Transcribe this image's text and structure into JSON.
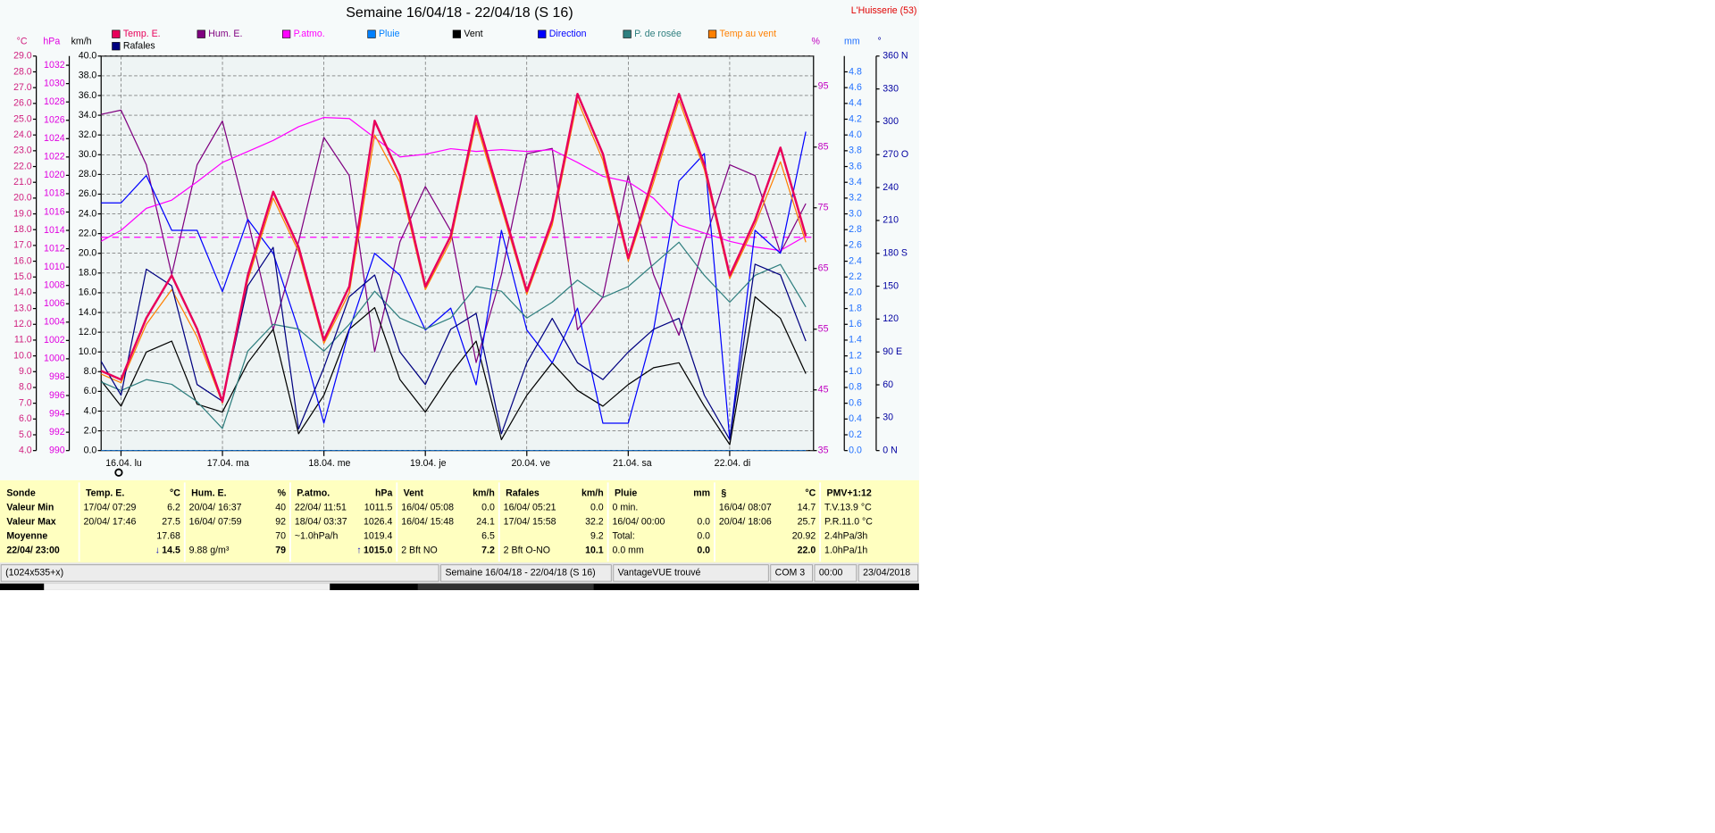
{
  "header": {
    "station": "L'Huisserie (53)"
  },
  "chart_data": {
    "type": "line",
    "title": "Semaine 16/04/18 - 22/04/18 (S 16)",
    "categories": [
      null,
      "16.04.  lu",
      null,
      null,
      null,
      "17.04.  ma",
      null,
      null,
      null,
      "18.04.  me",
      null,
      null,
      null,
      "19.04.  je",
      null,
      null,
      null,
      "20.04.  ve",
      null,
      null,
      null,
      "21.04.  sa",
      null,
      null,
      null,
      "22.04.  di",
      null,
      null,
      null
    ],
    "grid": true,
    "grid_axis": "kmh",
    "axes": [
      {
        "id": "temp",
        "label": "°C",
        "side": "left",
        "color": "#d0207f",
        "lim": [
          4,
          29
        ],
        "ticks": [
          {
            "value": 4,
            "label": "4.0"
          },
          {
            "value": 5,
            "label": "5.0"
          },
          {
            "value": 6,
            "label": "6.0"
          },
          {
            "value": 7,
            "label": "7.0"
          },
          {
            "value": 8,
            "label": "8.0"
          },
          {
            "value": 9,
            "label": "9.0"
          },
          {
            "value": 10,
            "label": "10.0"
          },
          {
            "value": 11,
            "label": "11.0"
          },
          {
            "value": 12,
            "label": "12.0"
          },
          {
            "value": 13,
            "label": "13.0"
          },
          {
            "value": 14,
            "label": "14.0"
          },
          {
            "value": 15,
            "label": "15.0"
          },
          {
            "value": 16,
            "label": "16.0"
          },
          {
            "value": 17,
            "label": "17.0"
          },
          {
            "value": 18,
            "label": "18.0"
          },
          {
            "value": 19,
            "label": "19.0"
          },
          {
            "value": 20,
            "label": "20.0"
          },
          {
            "value": 21,
            "label": "21.0"
          },
          {
            "value": 22,
            "label": "22.0"
          },
          {
            "value": 23,
            "label": "23.0"
          },
          {
            "value": 24,
            "label": "24.0"
          },
          {
            "value": 25,
            "label": "25.0"
          },
          {
            "value": 26,
            "label": "26.0"
          },
          {
            "value": 27,
            "label": "27.0"
          },
          {
            "value": 28,
            "label": "28.0"
          },
          {
            "value": 29,
            "label": "29.0"
          }
        ]
      },
      {
        "id": "hpa",
        "label": "hPa",
        "side": "left",
        "color": "#e000e0",
        "lim": [
          990,
          1033
        ],
        "ticks": [
          990,
          992,
          994,
          996,
          998,
          1000,
          1002,
          1004,
          1006,
          1008,
          1010,
          1012,
          1014,
          1016,
          1018,
          1020,
          1022,
          1024,
          1026,
          1028,
          1030,
          1032
        ]
      },
      {
        "id": "kmh",
        "label": "km/h",
        "side": "left",
        "color": "#000000",
        "lim": [
          0,
          40
        ],
        "ticks": [
          {
            "value": 0,
            "label": "0.0"
          },
          {
            "value": 2,
            "label": "2.0"
          },
          {
            "value": 4,
            "label": "4.0"
          },
          {
            "value": 6,
            "label": "6.0"
          },
          {
            "value": 8,
            "label": "8.0"
          },
          {
            "value": 10,
            "label": "10.0"
          },
          {
            "value": 12,
            "label": "12.0"
          },
          {
            "value": 14,
            "label": "14.0"
          },
          {
            "value": 16,
            "label": "16.0"
          },
          {
            "value": 18,
            "label": "18.0"
          },
          {
            "value": 20,
            "label": "20.0"
          },
          {
            "value": 22,
            "label": "22.0"
          },
          {
            "value": 24,
            "label": "24.0"
          },
          {
            "value": 26,
            "label": "26.0"
          },
          {
            "value": 28,
            "label": "28.0"
          },
          {
            "value": 30,
            "label": "30.0"
          },
          {
            "value": 32,
            "label": "32.0"
          },
          {
            "value": 34,
            "label": "34.0"
          },
          {
            "value": 36,
            "label": "36.0"
          },
          {
            "value": 38,
            "label": "38.0"
          },
          {
            "value": 40,
            "label": "40.0"
          }
        ]
      },
      {
        "id": "hum",
        "label": "%",
        "side": "right",
        "color": "#c000c0",
        "lim": [
          35,
          100
        ],
        "ticks": [
          35,
          45,
          55,
          65,
          75,
          85,
          95
        ]
      },
      {
        "id": "mm",
        "label": "mm",
        "side": "right",
        "color": "#2070ff",
        "lim": [
          0,
          5
        ],
        "ticks": [
          {
            "value": 0,
            "label": "0.0"
          },
          {
            "value": 0.2,
            "label": "0.2"
          },
          {
            "value": 0.4,
            "label": "0.4"
          },
          {
            "value": 0.6,
            "label": "0.6"
          },
          {
            "value": 0.8,
            "label": "0.8"
          },
          {
            "value": 1,
            "label": "1.0"
          },
          {
            "value": 1.2,
            "label": "1.2"
          },
          {
            "value": 1.4,
            "label": "1.4"
          },
          {
            "value": 1.6,
            "label": "1.6"
          },
          {
            "value": 1.8,
            "label": "1.8"
          },
          {
            "value": 2,
            "label": "2.0"
          },
          {
            "value": 2.2,
            "label": "2.2"
          },
          {
            "value": 2.4,
            "label": "2.4"
          },
          {
            "value": 2.6,
            "label": "2.6"
          },
          {
            "value": 2.8,
            "label": "2.8"
          },
          {
            "value": 3,
            "label": "3.0"
          },
          {
            "value": 3.2,
            "label": "3.2"
          },
          {
            "value": 3.4,
            "label": "3.4"
          },
          {
            "value": 3.6,
            "label": "3.6"
          },
          {
            "value": 3.8,
            "label": "3.8"
          },
          {
            "value": 4,
            "label": "4.0"
          },
          {
            "value": 4.2,
            "label": "4.2"
          },
          {
            "value": 4.4,
            "label": "4.4"
          },
          {
            "value": 4.6,
            "label": "4.6"
          },
          {
            "value": 4.8,
            "label": "4.8"
          }
        ]
      },
      {
        "id": "dir",
        "label": "°",
        "side": "right",
        "color": "#0000a0",
        "lim": [
          0,
          360
        ],
        "ticks": [
          {
            "value": 0,
            "label": "0   N"
          },
          30,
          60,
          {
            "value": 90,
            "label": "90  E"
          },
          120,
          150,
          {
            "value": 180,
            "label": "180 S"
          },
          210,
          240,
          {
            "value": 270,
            "label": "270 O"
          },
          300,
          330,
          {
            "value": 360,
            "label": "360 N"
          }
        ]
      }
    ],
    "reference_line": {
      "axis": "hpa",
      "value": 1013.25,
      "color": "#ff00ff"
    },
    "series": [
      {
        "name": "Temp. E.",
        "color": "#e8005a",
        "axis": "temp",
        "width": 2,
        "values": [
          9.2,
          8.5,
          12.4,
          15.1,
          11.7,
          7.1,
          15.1,
          20.4,
          16.9,
          11.0,
          14.4,
          24.9,
          21.4,
          14.4,
          17.6,
          25.2,
          19.7,
          14.1,
          18.6,
          26.6,
          22.8,
          16.2,
          21.4,
          26.6,
          22.1,
          15.1,
          18.6,
          23.2,
          17.6
        ]
      },
      {
        "name": "Hum. E.",
        "color": "#800080",
        "axis": "hum",
        "width": 1,
        "values": [
          90.2,
          91.1,
          82.1,
          64.0,
          82.1,
          89.3,
          73.0,
          54.9,
          69.4,
          86.6,
          80.3,
          51.3,
          69.4,
          78.5,
          71.2,
          49.5,
          64.0,
          83.9,
          84.8,
          54.9,
          60.3,
          80.3,
          64.0,
          54.0,
          69.4,
          82.1,
          80.3,
          67.6,
          75.7
        ]
      },
      {
        "name": "P.atmo.",
        "color": "#ff00ff",
        "axis": "hpa",
        "width": 1,
        "values": [
          1012.5,
          1014.0,
          1016.4,
          1017.3,
          1019.3,
          1021.4,
          1022.6,
          1023.8,
          1025.3,
          1026.3,
          1026.2,
          1024.1,
          1022.0,
          1022.3,
          1022.9,
          1022.6,
          1022.8,
          1022.6,
          1022.8,
          1021.4,
          1019.9,
          1019.3,
          1017.5,
          1014.6,
          1013.7,
          1012.8,
          1012.2,
          1011.8,
          1013.4
        ]
      },
      {
        "name": "Pluie",
        "color": "#0080ff",
        "axis": "mm",
        "width": 1,
        "values": [
          0,
          0,
          0,
          0,
          0,
          0,
          0,
          0,
          0,
          0,
          0,
          0,
          0,
          0,
          0,
          0,
          0,
          0,
          0,
          0,
          0,
          0,
          0,
          0,
          0,
          0,
          0,
          0,
          0
        ]
      },
      {
        "name": "Vent",
        "color": "#000000",
        "axis": "kmh",
        "width": 1,
        "values": [
          7.8,
          4.5,
          10.0,
          11.1,
          4.7,
          3.9,
          8.9,
          12.3,
          1.7,
          5.6,
          12.3,
          14.5,
          7.2,
          3.9,
          7.8,
          11.1,
          1.1,
          5.6,
          8.9,
          6.1,
          4.5,
          6.7,
          8.4,
          8.9,
          4.5,
          0.6,
          15.6,
          13.4,
          7.8
        ]
      },
      {
        "name": "Direction",
        "color": "#0000ff",
        "axis": "dir",
        "width": 1,
        "values": [
          226,
          226,
          251,
          201,
          201,
          145,
          211,
          180,
          110,
          25,
          110,
          180,
          160,
          110,
          130,
          60,
          201,
          110,
          80,
          130,
          25,
          25,
          110,
          246,
          271,
          10,
          201,
          180,
          291
        ]
      },
      {
        "name": "P. de rosée",
        "color": "#2f7f7f",
        "axis": "temp",
        "width": 1,
        "values": [
          8.5,
          7.8,
          8.5,
          8.2,
          7.1,
          5.4,
          10.3,
          12.0,
          11.7,
          10.3,
          12.0,
          14.1,
          12.4,
          11.7,
          12.4,
          14.4,
          14.1,
          12.4,
          13.4,
          14.8,
          13.7,
          14.4,
          15.8,
          17.2,
          15.1,
          13.4,
          15.1,
          15.8,
          13.1
        ]
      },
      {
        "name": "Temp au vent",
        "color": "#ff8000",
        "axis": "temp",
        "width": 1,
        "values": [
          9.0,
          8.3,
          12.0,
          14.2,
          11.2,
          7.0,
          14.8,
          20.0,
          16.6,
          10.8,
          14.0,
          24.0,
          21.0,
          14.2,
          17.3,
          24.8,
          19.4,
          13.9,
          18.3,
          26.2,
          22.4,
          16.0,
          21.0,
          26.2,
          21.8,
          14.9,
          18.3,
          22.3,
          17.2
        ]
      },
      {
        "name": "Rafales",
        "color": "#000080",
        "axis": "kmh",
        "width": 1,
        "values": [
          10.0,
          5.6,
          18.4,
          16.7,
          6.7,
          5.0,
          16.7,
          20.6,
          2.2,
          8.4,
          15.6,
          17.8,
          10.0,
          6.7,
          12.3,
          13.9,
          1.7,
          8.9,
          13.4,
          8.9,
          7.2,
          10.0,
          12.3,
          13.4,
          5.6,
          1.1,
          18.9,
          17.8,
          11.1
        ]
      }
    ]
  },
  "table": {
    "columns": [
      {
        "label": "Sonde"
      },
      {
        "label": "Temp. E.",
        "unit": "°C"
      },
      {
        "label": "Hum. E.",
        "unit": "%"
      },
      {
        "label": "P.atmo.",
        "unit": "hPa"
      },
      {
        "label": "Vent",
        "unit": "km/h"
      },
      {
        "label": "Rafales",
        "unit": "km/h"
      },
      {
        "label": "Pluie",
        "unit": "mm"
      },
      {
        "label": "§",
        "unit": "°C"
      },
      {
        "label": "PMV+1:12"
      }
    ],
    "rows": [
      {
        "label": "Valeur Min",
        "cells": [
          {
            "l": "17/04/  07:29",
            "r": "6.2"
          },
          {
            "l": "20/04/  16:37",
            "r": "40"
          },
          {
            "l": "22/04/  11:51",
            "r": "1011.5"
          },
          {
            "l": "16/04/  05:08",
            "r": "0.0"
          },
          {
            "l": "16/04/  05:21",
            "r": "0.0"
          },
          {
            "l": "0 min."
          },
          {
            "l": "16/04/  08:07",
            "r": "14.7"
          },
          {
            "l": "T.V.13.9 °C"
          }
        ]
      },
      {
        "label": "Valeur Max",
        "cells": [
          {
            "l": "20/04/  17:46",
            "r": "27.5"
          },
          {
            "l": "16/04/  07:59",
            "r": "92"
          },
          {
            "l": "18/04/  03:37",
            "r": "1026.4"
          },
          {
            "l": "16/04/  15:48",
            "r": "24.1"
          },
          {
            "l": "17/04/  15:58",
            "r": "32.2"
          },
          {
            "l": "16/04/  00:00",
            "r": "0.0"
          },
          {
            "l": "20/04/  18:06",
            "r": "25.7"
          },
          {
            "l": "P.R.11.0 °C"
          }
        ]
      },
      {
        "label": "Moyenne",
        "cells": [
          {
            "r": "17.68"
          },
          {
            "r": "70"
          },
          {
            "l": "~1.0hPa/h",
            "r": "1019.4"
          },
          {
            "r": "6.5"
          },
          {
            "r": "9.2"
          },
          {
            "l": "Total:",
            "r": "0.0"
          },
          {
            "r": "20.92"
          },
          {
            "l": "2.4hPa/3h"
          }
        ]
      },
      {
        "label": "22/04/ 23:00",
        "current": true,
        "cells": [
          {
            "r": "14.5",
            "arrow": "↓"
          },
          {
            "l": "9.88 g/m³",
            "r": "79"
          },
          {
            "r": "1015.0",
            "arrow": "↑"
          },
          {
            "l": "2 Bft NO",
            "r": "7.2"
          },
          {
            "l": "2 Bft O-NO",
            "r": "10.1"
          },
          {
            "l": "0.0 mm",
            "r": "0.0"
          },
          {
            "r": "22.0"
          },
          {
            "l": "1.0hPa/1h"
          }
        ]
      }
    ]
  },
  "status_bar": [
    "(1024x535+x)",
    "Semaine 16/04/18 - 22/04/18 (S 16)",
    "VantageVUE trouvé",
    "COM 3",
    "00:00",
    "23/04/2018"
  ]
}
